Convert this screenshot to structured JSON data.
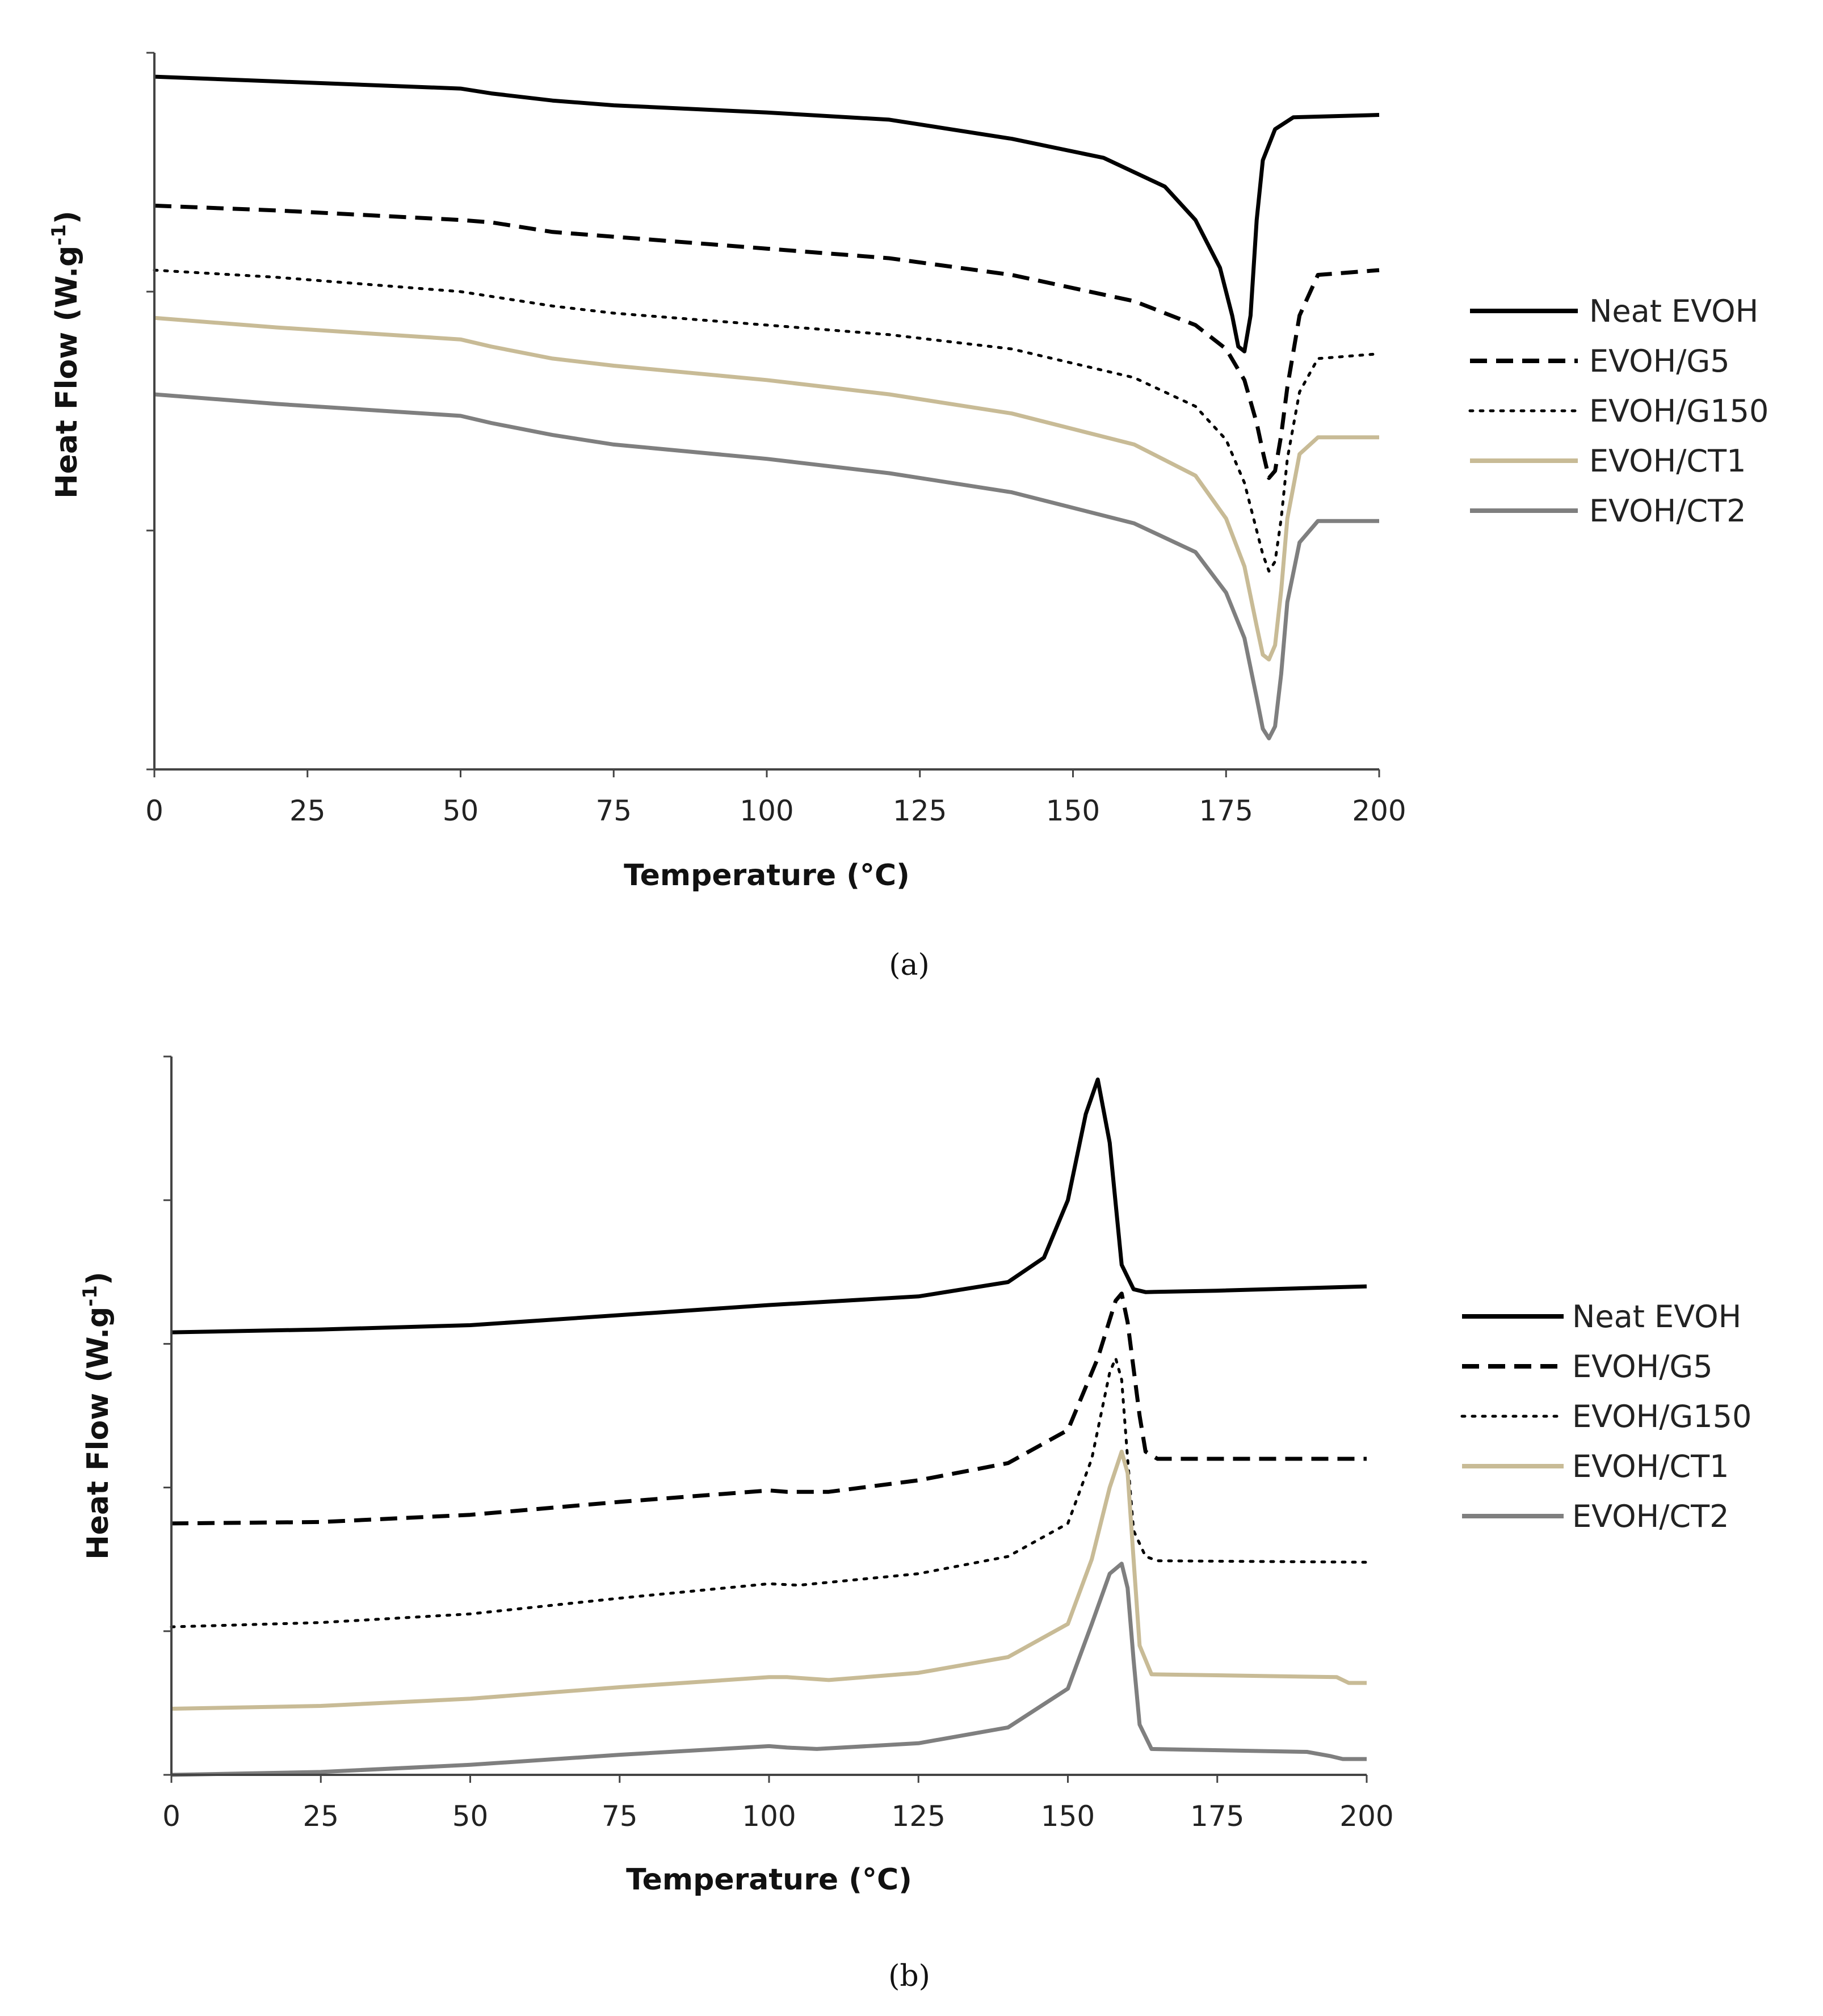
{
  "chart_data": [
    {
      "panel_label": "(a)",
      "type": "line",
      "xlabel": "Temperature (°C)",
      "ylabel": "Heat Flow (W.g",
      "ylabel_sup": "-1",
      "ylabel_close": ")",
      "xlim": [
        0,
        200
      ],
      "xticks": [
        "0",
        "25",
        "50",
        "75",
        "100",
        "125",
        "150",
        "175",
        "200"
      ],
      "ylim": [
        0,
        3
      ],
      "yticks_count": 4,
      "legend_position": "right",
      "series": [
        {
          "name": "Neat EVOH",
          "color": "#000000",
          "dash": "solid",
          "x": [
            0,
            20,
            50,
            55,
            65,
            75,
            100,
            120,
            140,
            155,
            165,
            170,
            174,
            176,
            177,
            178,
            179,
            180,
            181,
            183,
            186,
            200
          ],
          "y": [
            2.9,
            2.88,
            2.85,
            2.83,
            2.8,
            2.78,
            2.75,
            2.72,
            2.64,
            2.56,
            2.44,
            2.3,
            2.1,
            1.9,
            1.77,
            1.75,
            1.9,
            2.3,
            2.55,
            2.68,
            2.73,
            2.74
          ]
        },
        {
          "name": "EVOH/G5",
          "color": "#000000",
          "dash": "dashed",
          "x": [
            0,
            20,
            50,
            55,
            65,
            75,
            100,
            120,
            140,
            160,
            170,
            175,
            178,
            180,
            181,
            182,
            183,
            184,
            185,
            187,
            190,
            200
          ],
          "y": [
            2.36,
            2.34,
            2.3,
            2.29,
            2.25,
            2.23,
            2.18,
            2.14,
            2.07,
            1.96,
            1.86,
            1.76,
            1.63,
            1.45,
            1.33,
            1.22,
            1.25,
            1.4,
            1.6,
            1.9,
            2.07,
            2.09
          ]
        },
        {
          "name": "EVOH/G150",
          "color": "#000000",
          "dash": "dotted",
          "x": [
            0,
            20,
            50,
            55,
            65,
            75,
            100,
            120,
            140,
            160,
            170,
            175,
            178,
            180,
            181,
            182,
            183,
            184,
            185,
            187,
            190,
            200
          ],
          "y": [
            2.09,
            2.06,
            2.0,
            1.98,
            1.94,
            1.91,
            1.86,
            1.82,
            1.76,
            1.64,
            1.52,
            1.38,
            1.2,
            1.0,
            0.9,
            0.83,
            0.87,
            1.05,
            1.3,
            1.58,
            1.72,
            1.74
          ]
        },
        {
          "name": "EVOH/CT1",
          "color": "#c8bb96",
          "dash": "solid",
          "x": [
            0,
            20,
            50,
            55,
            65,
            75,
            100,
            120,
            140,
            160,
            170,
            175,
            178,
            180,
            181,
            182,
            183,
            184,
            185,
            187,
            190,
            200
          ],
          "y": [
            1.89,
            1.85,
            1.8,
            1.77,
            1.72,
            1.69,
            1.63,
            1.57,
            1.49,
            1.36,
            1.23,
            1.05,
            0.85,
            0.6,
            0.48,
            0.46,
            0.52,
            0.75,
            1.05,
            1.32,
            1.39,
            1.39
          ]
        },
        {
          "name": "EVOH/CT2",
          "color": "#7f7f7f",
          "dash": "solid",
          "x": [
            0,
            20,
            50,
            55,
            65,
            75,
            100,
            120,
            140,
            160,
            170,
            175,
            178,
            180,
            181,
            182,
            183,
            184,
            185,
            187,
            190,
            200
          ],
          "y": [
            1.57,
            1.53,
            1.48,
            1.45,
            1.4,
            1.36,
            1.3,
            1.24,
            1.16,
            1.03,
            0.91,
            0.74,
            0.55,
            0.3,
            0.17,
            0.13,
            0.18,
            0.4,
            0.7,
            0.95,
            1.04,
            1.04
          ]
        }
      ]
    },
    {
      "panel_label": "(b)",
      "type": "line",
      "xlabel": "Temperature (°C)",
      "ylabel": "Heat Flow (W.g",
      "ylabel_sup": "-1",
      "ylabel_close": ")",
      "xlim": [
        0,
        200
      ],
      "xticks": [
        "0",
        "25",
        "50",
        "75",
        "100",
        "125",
        "150",
        "175",
        "200"
      ],
      "ylim": [
        0,
        5
      ],
      "yticks_count": 6,
      "legend_position": "right",
      "series": [
        {
          "name": "Neat EVOH",
          "color": "#000000",
          "dash": "solid",
          "x": [
            0,
            25,
            50,
            75,
            100,
            125,
            140,
            146,
            150,
            153,
            155,
            157,
            159,
            161,
            163,
            175,
            200
          ],
          "y": [
            3.08,
            3.1,
            3.13,
            3.2,
            3.27,
            3.33,
            3.43,
            3.6,
            4.0,
            4.6,
            4.84,
            4.4,
            3.55,
            3.38,
            3.36,
            3.37,
            3.4
          ]
        },
        {
          "name": "EVOH/G5",
          "color": "#000000",
          "dash": "dashed",
          "x": [
            0,
            25,
            50,
            75,
            100,
            103,
            110,
            125,
            140,
            150,
            155,
            158,
            159,
            160,
            162,
            163,
            165,
            200
          ],
          "y": [
            1.75,
            1.76,
            1.81,
            1.9,
            1.98,
            1.97,
            1.97,
            2.05,
            2.17,
            2.4,
            2.9,
            3.3,
            3.35,
            3.15,
            2.5,
            2.25,
            2.2,
            2.2
          ]
        },
        {
          "name": "EVOH/G150",
          "color": "#000000",
          "dash": "dotted",
          "x": [
            0,
            25,
            50,
            75,
            100,
            105,
            125,
            140,
            150,
            154,
            157,
            158,
            159,
            160,
            161,
            163,
            165,
            200
          ],
          "y": [
            1.03,
            1.06,
            1.12,
            1.23,
            1.33,
            1.32,
            1.4,
            1.52,
            1.75,
            2.2,
            2.8,
            2.9,
            2.75,
            2.2,
            1.7,
            1.52,
            1.49,
            1.48
          ]
        },
        {
          "name": "EVOH/CT1",
          "color": "#c8bb96",
          "dash": "solid",
          "x": [
            0,
            25,
            50,
            75,
            100,
            103,
            110,
            125,
            140,
            150,
            154,
            157,
            159,
            160,
            161,
            162,
            164,
            195,
            197,
            200
          ],
          "y": [
            0.46,
            0.48,
            0.53,
            0.61,
            0.68,
            0.68,
            0.66,
            0.71,
            0.82,
            1.05,
            1.5,
            2.0,
            2.25,
            2.1,
            1.5,
            0.9,
            0.7,
            0.68,
            0.64,
            0.64
          ]
        },
        {
          "name": "EVOH/CT2",
          "color": "#7f7f7f",
          "dash": "solid",
          "x": [
            0,
            25,
            50,
            75,
            100,
            103,
            108,
            125,
            140,
            150,
            154,
            157,
            159,
            160,
            161,
            162,
            164,
            190,
            194,
            196,
            200
          ],
          "y": [
            0.0,
            0.02,
            0.07,
            0.14,
            0.2,
            0.19,
            0.18,
            0.22,
            0.33,
            0.6,
            1.05,
            1.4,
            1.47,
            1.3,
            0.8,
            0.35,
            0.18,
            0.16,
            0.13,
            0.11,
            0.11
          ]
        }
      ]
    }
  ]
}
